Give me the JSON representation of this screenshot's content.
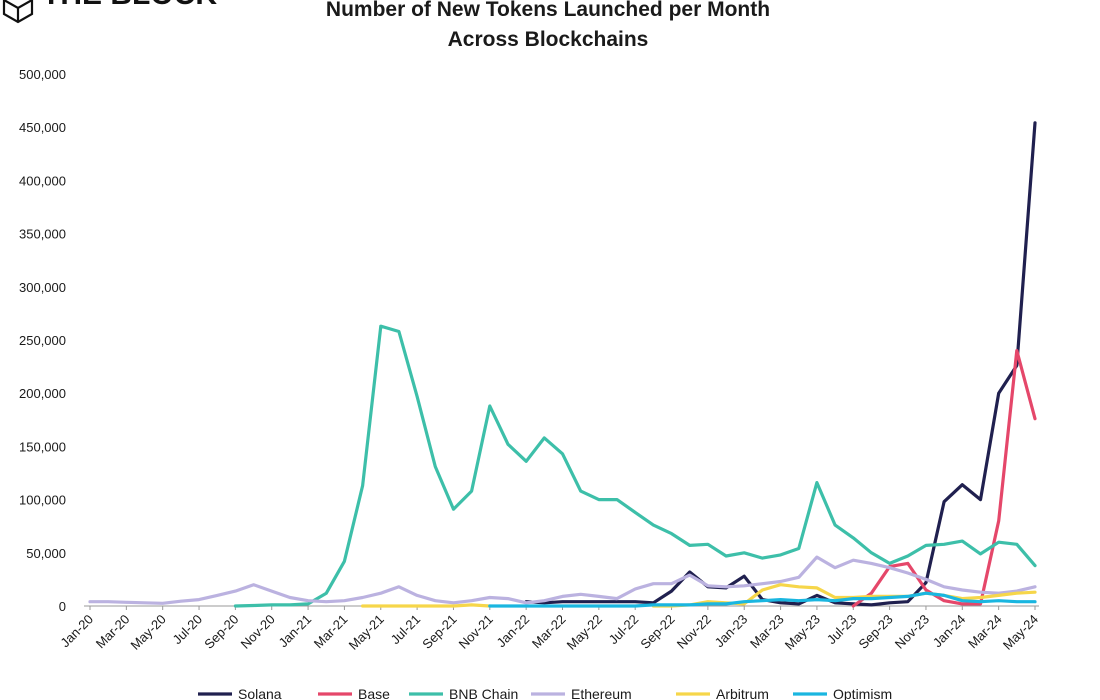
{
  "logo": {
    "text": "THE BLOCK"
  },
  "colors": {
    "Solana": "#20204f",
    "Base": "#e5476a",
    "BNB Chain": "#3dbfa9",
    "Ethereum": "#bbb2e0",
    "Arbitrum": "#f6d64a",
    "Optimism": "#1ab6e0",
    "axis": "#999999"
  },
  "chart_data": {
    "type": "line",
    "title": "Number of New Tokens Launched per Month Across Blockchains",
    "title_lines": [
      "Number of New Tokens Launched per Month",
      "Across Blockchains"
    ],
    "xlabel": "",
    "ylabel": "",
    "ylim": [
      0,
      500000
    ],
    "yticks": [
      0,
      50000,
      100000,
      150000,
      200000,
      250000,
      300000,
      350000,
      400000,
      450000,
      500000
    ],
    "ytick_labels": [
      "0",
      "50,000",
      "100,000",
      "150,000",
      "200,000",
      "250,000",
      "300,000",
      "350,000",
      "400,000",
      "450,000",
      "500,000"
    ],
    "grid": false,
    "legend_position": "bottom",
    "x": [
      "Jan-20",
      "Feb-20",
      "Mar-20",
      "Apr-20",
      "May-20",
      "Jun-20",
      "Jul-20",
      "Aug-20",
      "Sep-20",
      "Oct-20",
      "Nov-20",
      "Dec-20",
      "Jan-21",
      "Feb-21",
      "Mar-21",
      "Apr-21",
      "May-21",
      "Jun-21",
      "Jul-21",
      "Aug-21",
      "Sep-21",
      "Oct-21",
      "Nov-21",
      "Dec-21",
      "Jan-22",
      "Feb-22",
      "Mar-22",
      "Apr-22",
      "May-22",
      "Jun-22",
      "Jul-22",
      "Aug-22",
      "Sep-22",
      "Oct-22",
      "Nov-22",
      "Dec-22",
      "Jan-23",
      "Feb-23",
      "Mar-23",
      "Apr-23",
      "May-23",
      "Jun-23",
      "Jul-23",
      "Aug-23",
      "Sep-23",
      "Oct-23",
      "Nov-23",
      "Dec-23",
      "Jan-24",
      "Feb-24",
      "Mar-24",
      "Apr-24",
      "May-24"
    ],
    "x_tick_labels": [
      "Jan-20",
      "Mar-20",
      "May-20",
      "Jul-20",
      "Sep-20",
      "Nov-20",
      "Jan-21",
      "Mar-21",
      "May-21",
      "Jul-21",
      "Sep-21",
      "Nov-21",
      "Jan-22",
      "Mar-22",
      "May-22",
      "Jul-22",
      "Sep-22",
      "Nov-22",
      "Jan-23",
      "Mar-23",
      "May-23",
      "Jul-23",
      "Sep-23",
      "Nov-23",
      "Jan-24",
      "Mar-24",
      "May-24"
    ],
    "series": [
      {
        "name": "Solana",
        "values": [
          null,
          null,
          null,
          null,
          null,
          null,
          null,
          null,
          null,
          null,
          null,
          null,
          null,
          null,
          null,
          null,
          null,
          null,
          null,
          null,
          null,
          null,
          null,
          null,
          4000,
          3000,
          4000,
          4000,
          4000,
          4000,
          4000,
          3000,
          14000,
          32000,
          18000,
          17000,
          28000,
          6000,
          3000,
          2000,
          10000,
          3000,
          2000,
          1000,
          3000,
          4000,
          22000,
          98000,
          114000,
          100000,
          200000,
          226000,
          454000
        ]
      },
      {
        "name": "Base",
        "values": [
          null,
          null,
          null,
          null,
          null,
          null,
          null,
          null,
          null,
          null,
          null,
          null,
          null,
          null,
          null,
          null,
          null,
          null,
          null,
          null,
          null,
          null,
          null,
          null,
          null,
          null,
          null,
          null,
          null,
          null,
          null,
          null,
          null,
          null,
          null,
          null,
          null,
          null,
          null,
          null,
          null,
          null,
          0,
          12000,
          37000,
          40000,
          15000,
          5000,
          2000,
          2000,
          80000,
          240000,
          176000
        ]
      },
      {
        "name": "BNB Chain",
        "values": [
          null,
          null,
          null,
          null,
          null,
          null,
          null,
          null,
          0,
          500,
          1000,
          1000,
          2000,
          12000,
          42000,
          113000,
          263000,
          258000,
          197000,
          131000,
          91000,
          108000,
          188000,
          152000,
          136000,
          158000,
          143000,
          108000,
          100000,
          100000,
          88000,
          76000,
          68000,
          57000,
          58000,
          47000,
          50000,
          45000,
          48000,
          54000,
          116000,
          76000,
          64000,
          50000,
          40000,
          47000,
          57000,
          58000,
          61000,
          49000,
          60000,
          58000,
          38000
        ]
      },
      {
        "name": "Ethereum",
        "values": [
          4000,
          4000,
          3500,
          3000,
          2500,
          4500,
          6000,
          10000,
          14000,
          20000,
          14000,
          8000,
          5000,
          4000,
          5000,
          8000,
          12000,
          18000,
          10000,
          5000,
          3000,
          5000,
          8000,
          7000,
          3000,
          5000,
          9000,
          11000,
          9000,
          7000,
          16000,
          21000,
          21000,
          29000,
          19000,
          18000,
          19000,
          21000,
          23000,
          27000,
          46000,
          36000,
          43000,
          40000,
          36000,
          31000,
          25000,
          18000,
          15000,
          13000,
          12000,
          14000,
          18000
        ]
      },
      {
        "name": "Arbitrum",
        "values": [
          null,
          null,
          null,
          null,
          null,
          null,
          null,
          null,
          null,
          null,
          null,
          null,
          null,
          null,
          null,
          0,
          0,
          0,
          0,
          0,
          0,
          1000,
          0,
          null,
          null,
          null,
          null,
          null,
          null,
          null,
          null,
          0,
          0,
          1000,
          4000,
          3000,
          2000,
          15000,
          20000,
          18000,
          17000,
          8000,
          8000,
          9000,
          9000,
          9000,
          12000,
          10000,
          7000,
          8000,
          10000,
          12000,
          13000
        ]
      },
      {
        "name": "Optimism",
        "values": [
          null,
          null,
          null,
          null,
          null,
          null,
          null,
          null,
          null,
          null,
          null,
          null,
          null,
          null,
          null,
          null,
          null,
          null,
          null,
          null,
          null,
          null,
          0,
          0,
          0,
          0,
          0,
          0,
          0,
          0,
          0,
          1000,
          1000,
          1000,
          2000,
          2000,
          4000,
          5000,
          6000,
          5000,
          6000,
          5000,
          7000,
          7000,
          8000,
          9000,
          12000,
          10000,
          5000,
          4000,
          5000,
          4000,
          4000
        ]
      }
    ]
  }
}
